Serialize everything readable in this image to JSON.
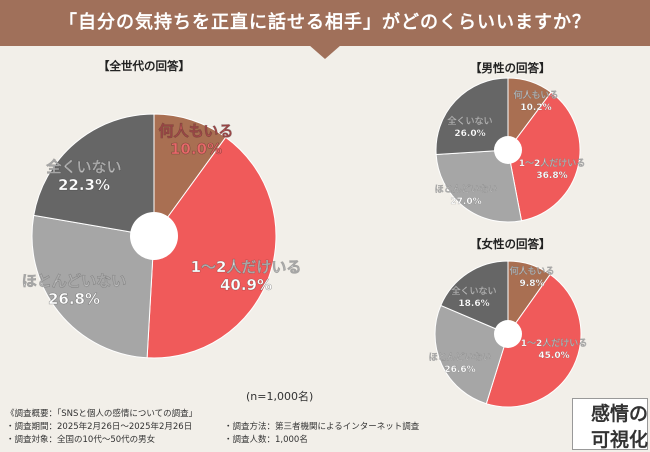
{
  "header": {
    "title": "「自分の気持ちを正直に話せる相手」がどのくらいいますか？"
  },
  "colors": {
    "few": "#f05a5a",
    "some": "#a96f52",
    "almost": "#a6a6a6",
    "none": "#666666",
    "header": "#a0705a"
  },
  "chart_data": [
    {
      "type": "pie",
      "title": "【全世代の回答】",
      "labels": [
        "何人もいる",
        "1〜2人だけいる",
        "ほとんどいない",
        "全くいない"
      ],
      "values": [
        10.0,
        40.9,
        26.8,
        22.3
      ],
      "value_labels": [
        "10.0%",
        "40.9%",
        "26.8%",
        "22.3%"
      ]
    },
    {
      "type": "pie",
      "title": "【男性の回答】",
      "labels": [
        "何人もいる",
        "1〜2人だけいる",
        "ほとんどいない",
        "全くいない"
      ],
      "values": [
        10.2,
        36.8,
        27.0,
        26.0
      ],
      "value_labels": [
        "10.2%",
        "36.8%",
        "27.0%",
        "26.0%"
      ]
    },
    {
      "type": "pie",
      "title": "【女性の回答】",
      "labels": [
        "何人もいる",
        "1〜2人だけいる",
        "ほとんどいない",
        "全くいない"
      ],
      "values": [
        9.8,
        45.0,
        26.6,
        18.6
      ],
      "value_labels": [
        "9.8%",
        "45.0%",
        "26.6%",
        "18.6%"
      ]
    }
  ],
  "sample_note": "(n=1,000名)",
  "survey": {
    "overview": "《調査概要：「SNSと個人の感情についての調査」",
    "period": "・調査期間：2025年2月26日〜2025年2月26日",
    "target": "・調査対象：全国の10代〜50代の男女",
    "method": "・調査方法：第三者機関によるインターネット調査",
    "count": "・調査人数：1,000名"
  },
  "logo": {
    "main": "感情の",
    "sub": "可視化"
  }
}
